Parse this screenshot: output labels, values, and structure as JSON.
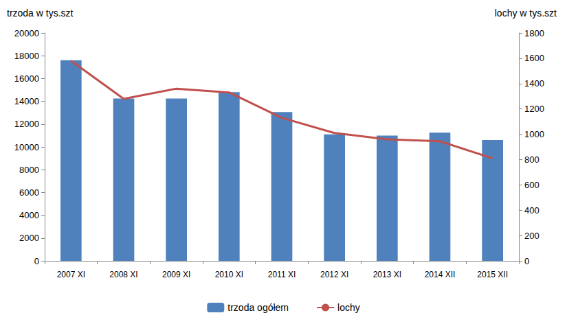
{
  "chart_data": {
    "type": "bar",
    "categories": [
      "2007 XI",
      "2008 XI",
      "2009 XI",
      "2010 XI",
      "2011 XI",
      "2012 XI",
      "2013 XI",
      "2014 XII",
      "2015 XII"
    ],
    "y_label": "trzoda w tys.szt",
    "y2_label": "lochy w tys.szt",
    "series": [
      {
        "name": "trzoda ogółem",
        "type": "bar",
        "color": "#4f81bd",
        "axis": "y",
        "values": [
          17600,
          14250,
          14250,
          14800,
          13050,
          11100,
          11000,
          11250,
          10600
        ]
      },
      {
        "name": "lochy",
        "type": "line",
        "color": "#c0504d",
        "axis": "y2",
        "marker": "none",
        "values": [
          1580,
          1280,
          1360,
          1330,
          1130,
          1010,
          960,
          945,
          810
        ]
      }
    ],
    "ylim": [
      0,
      20000
    ],
    "yticks": [
      0,
      2000,
      4000,
      6000,
      8000,
      10000,
      12000,
      14000,
      16000,
      18000,
      20000
    ],
    "y2lim": [
      0,
      1800
    ],
    "y2ticks": [
      0,
      200,
      400,
      600,
      800,
      1000,
      1200,
      1400,
      1600,
      1800
    ],
    "grid": false,
    "legend": "bottom"
  }
}
